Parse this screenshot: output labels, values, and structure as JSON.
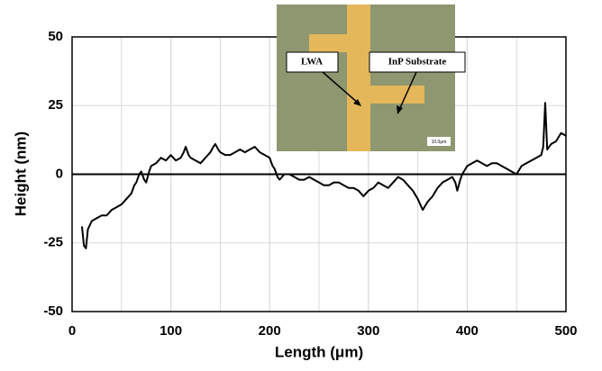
{
  "chart_data": {
    "type": "line",
    "x_label": "Length (μm)",
    "y_label": "Height (nm)",
    "x": [
      10,
      12,
      14,
      16,
      20,
      25,
      30,
      35,
      40,
      45,
      50,
      55,
      60,
      63,
      65,
      68,
      70,
      73,
      75,
      78,
      80,
      85,
      90,
      95,
      100,
      105,
      110,
      113,
      115,
      118,
      120,
      125,
      130,
      135,
      140,
      143,
      145,
      148,
      150,
      155,
      160,
      165,
      170,
      175,
      180,
      185,
      190,
      195,
      200,
      203,
      205,
      208,
      210,
      215,
      220,
      225,
      230,
      235,
      240,
      245,
      250,
      255,
      260,
      265,
      270,
      275,
      280,
      285,
      290,
      295,
      300,
      305,
      310,
      315,
      320,
      325,
      330,
      335,
      340,
      345,
      350,
      355,
      360,
      365,
      370,
      375,
      380,
      385,
      388,
      390,
      393,
      395,
      400,
      405,
      410,
      415,
      420,
      425,
      430,
      435,
      440,
      445,
      450,
      455,
      460,
      465,
      470,
      475,
      477,
      479,
      481,
      485,
      490,
      495,
      500
    ],
    "values": [
      -19,
      -26,
      -27,
      -20,
      -17,
      -16,
      -15,
      -15,
      -13,
      -12,
      -11,
      -9,
      -7,
      -4,
      -3,
      0,
      1,
      -2,
      -3,
      1,
      3,
      4,
      6,
      5,
      7,
      5,
      6,
      8,
      10,
      7,
      6,
      5,
      4,
      6,
      8,
      10,
      11,
      9,
      8,
      7,
      7,
      8,
      9,
      8,
      9,
      10,
      8,
      7,
      6,
      3,
      2,
      -1,
      -2,
      0,
      0,
      -1,
      -2,
      -2,
      -1,
      -2,
      -3,
      -4,
      -4,
      -3,
      -3,
      -4,
      -5,
      -5,
      -6,
      -8,
      -6,
      -5,
      -3,
      -4,
      -5,
      -3,
      -1,
      -2,
      -4,
      -6,
      -9,
      -13,
      -10,
      -8,
      -5,
      -3,
      -2,
      -1,
      -3,
      -6,
      -2,
      0,
      3,
      4,
      5,
      4,
      3,
      4,
      4,
      3,
      2,
      1,
      0,
      3,
      4,
      5,
      6,
      7,
      10,
      26,
      9,
      11,
      12,
      15,
      14
    ],
    "color": "#000000",
    "xlim": [
      0,
      500
    ],
    "xticks": [
      0,
      100,
      200,
      300,
      400,
      500
    ],
    "ylim": [
      -50,
      50
    ],
    "yticks": [
      50,
      25,
      0,
      -25,
      -50
    ],
    "grid": true,
    "x_minor_grid": 50,
    "annotations": [
      "LWA",
      "InP Substrate",
      "10.0μm"
    ]
  }
}
